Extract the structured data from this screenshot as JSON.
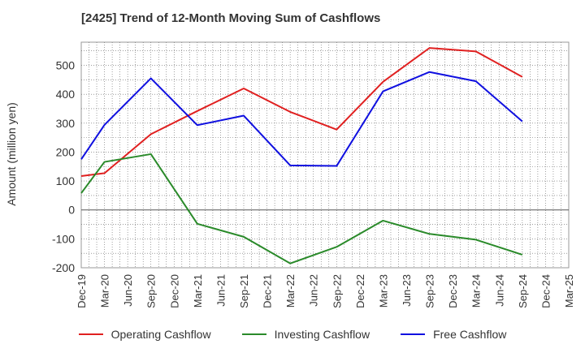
{
  "title": "[2425]  Trend of 12-Month Moving Sum of Cashflows",
  "chart_data": {
    "type": "line",
    "title": "[2425]  Trend of 12-Month Moving Sum of Cashflows",
    "xlabel": "",
    "ylabel": "Amount (million yen)",
    "ylim": [
      -200,
      580
    ],
    "yticks": [
      -200,
      -100,
      0,
      100,
      200,
      300,
      400,
      500
    ],
    "grid": true,
    "legend_position": "bottom",
    "categories": [
      "Dec-19",
      "Mar-20",
      "Jun-20",
      "Sep-20",
      "Dec-20",
      "Mar-21",
      "Jun-21",
      "Sep-21",
      "Dec-21",
      "Mar-22",
      "Jun-22",
      "Sep-22",
      "Dec-22",
      "Mar-23",
      "Jun-23",
      "Sep-23",
      "Dec-23",
      "Mar-24",
      "Jun-24",
      "Sep-24",
      "Dec-24",
      "Mar-25"
    ],
    "series": [
      {
        "name": "Operating Cashflow",
        "color": "#e02020",
        "values": [
          117,
          127,
          null,
          262,
          null,
          342,
          null,
          420,
          null,
          339,
          null,
          278,
          null,
          443,
          null,
          560,
          null,
          548,
          null,
          460,
          null,
          null
        ]
      },
      {
        "name": "Investing Cashflow",
        "color": "#2a8a2a",
        "values": [
          58,
          166,
          null,
          193,
          null,
          -48,
          null,
          -93,
          null,
          -185,
          null,
          -128,
          null,
          -37,
          null,
          -83,
          null,
          -103,
          null,
          -155,
          null,
          null
        ]
      },
      {
        "name": "Free Cashflow",
        "color": "#1010e0",
        "values": [
          175,
          294,
          null,
          455,
          null,
          293,
          null,
          326,
          null,
          154,
          null,
          152,
          null,
          410,
          null,
          477,
          null,
          445,
          null,
          306,
          null,
          null
        ]
      }
    ]
  }
}
